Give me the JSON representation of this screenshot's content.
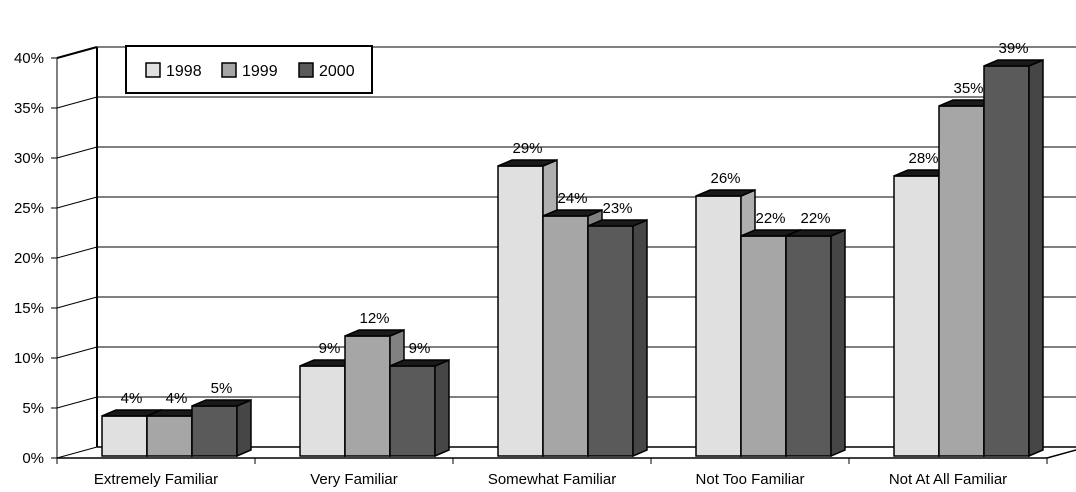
{
  "chart_data": {
    "type": "bar",
    "categories": [
      "Extremely Familiar",
      "Very Familiar",
      "Somewhat Familiar",
      "Not Too Familiar",
      "Not At All Familiar"
    ],
    "series": [
      {
        "name": "1998",
        "values": [
          4,
          9,
          29,
          26,
          28
        ],
        "color": "#e0e0e0"
      },
      {
        "name": "1999",
        "values": [
          4,
          12,
          24,
          22,
          35
        ],
        "color": "#a6a6a6"
      },
      {
        "name": "2000",
        "values": [
          5,
          9,
          23,
          22,
          39
        ],
        "color": "#5a5a5a"
      }
    ],
    "data_labels": [
      [
        "4%",
        "9%",
        "29%",
        "26%",
        "28%"
      ],
      [
        "4%",
        "12%",
        "24%",
        "22%",
        "35%"
      ],
      [
        "5%",
        "9%",
        "23%",
        "22%",
        "39%"
      ]
    ],
    "y_ticks": [
      "0%",
      "5%",
      "10%",
      "15%",
      "20%",
      "25%",
      "30%",
      "35%",
      "40%"
    ],
    "ylim": [
      0,
      40
    ],
    "grid": true,
    "legend_position": "top-left",
    "style": "3d-clustered-bar"
  }
}
